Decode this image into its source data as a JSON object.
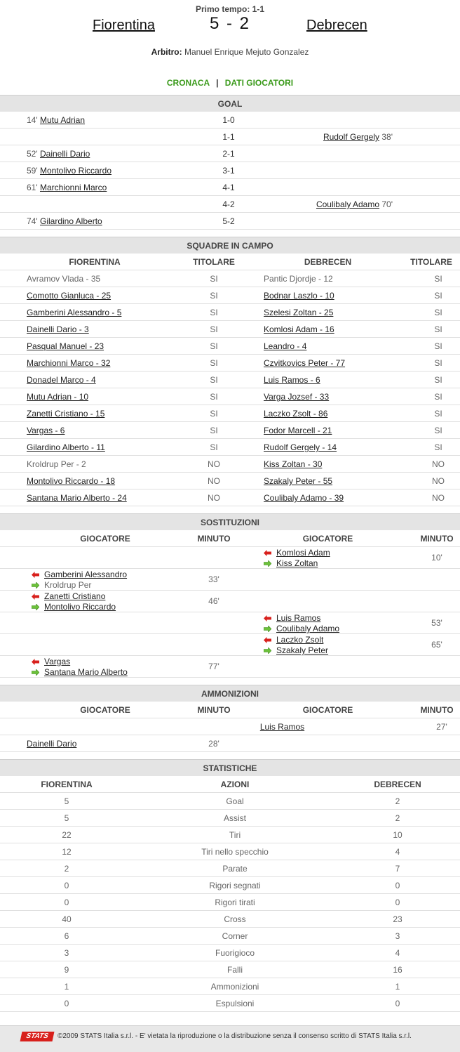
{
  "header": {
    "halftime": "Primo tempo: 1-1",
    "home": "Fiorentina",
    "away": "Debrecen",
    "score": "5 -  2",
    "referee_label": "Arbitro:",
    "referee": "Manuel Enrique Mejuto Gonzalez"
  },
  "tabs": {
    "cronaca": "CRONACA",
    "sep": "|",
    "dati": "DATI GIOCATORI"
  },
  "goals": {
    "title": "GOAL",
    "rows": [
      {
        "side": "home",
        "min": "14'",
        "player": "Mutu Adrian",
        "score": "1-0"
      },
      {
        "side": "away",
        "min": "38'",
        "player": "Rudolf Gergely",
        "score": "1-1"
      },
      {
        "side": "home",
        "min": "52'",
        "player": "Dainelli Dario",
        "score": "2-1"
      },
      {
        "side": "home",
        "min": "59'",
        "player": "Montolivo Riccardo",
        "score": "3-1"
      },
      {
        "side": "home",
        "min": "61'",
        "player": "Marchionni Marco",
        "score": "4-1"
      },
      {
        "side": "away",
        "min": "70'",
        "player": "Coulibaly Adamo",
        "score": "4-2"
      },
      {
        "side": "home",
        "min": "74'",
        "player": "Gilardino Alberto",
        "score": "5-2"
      }
    ]
  },
  "lineups": {
    "title": "SQUADRE IN CAMPO",
    "head": {
      "home": "FIORENTINA",
      "tit1": "TITOLARE",
      "away": "DEBRECEN",
      "tit2": "TITOLARE"
    },
    "rows": [
      {
        "home": "Avramov Vlada - 35",
        "hlink": false,
        "ht": "SI",
        "away": "Pantic Djordje - 12",
        "alink": false,
        "at": "SI"
      },
      {
        "home": "Comotto Gianluca - 25",
        "hlink": true,
        "ht": "SI",
        "away": "Bodnar Laszlo - 10",
        "alink": true,
        "at": "SI"
      },
      {
        "home": "Gamberini Alessandro - 5",
        "hlink": true,
        "ht": "SI",
        "away": "Szelesi Zoltan - 25",
        "alink": true,
        "at": "SI"
      },
      {
        "home": "Dainelli Dario - 3",
        "hlink": true,
        "ht": "SI",
        "away": "Komlosi Adam - 16",
        "alink": true,
        "at": "SI"
      },
      {
        "home": "Pasqual Manuel - 23",
        "hlink": true,
        "ht": "SI",
        "away": "Leandro - 4",
        "alink": true,
        "at": "SI"
      },
      {
        "home": "Marchionni Marco - 32",
        "hlink": true,
        "ht": "SI",
        "away": "Czvitkovics Peter - 77",
        "alink": true,
        "at": "SI"
      },
      {
        "home": "Donadel Marco - 4",
        "hlink": true,
        "ht": "SI",
        "away": "Luis Ramos - 6",
        "alink": true,
        "at": "SI"
      },
      {
        "home": "Mutu Adrian - 10",
        "hlink": true,
        "ht": "SI",
        "away": "Varga Jozsef - 33",
        "alink": true,
        "at": "SI"
      },
      {
        "home": "Zanetti Cristiano - 15",
        "hlink": true,
        "ht": "SI",
        "away": "Laczko Zsolt - 86",
        "alink": true,
        "at": "SI"
      },
      {
        "home": "Vargas - 6",
        "hlink": true,
        "ht": "SI",
        "away": "Fodor Marcell - 21",
        "alink": true,
        "at": "SI"
      },
      {
        "home": "Gilardino Alberto - 11",
        "hlink": true,
        "ht": "SI",
        "away": "Rudolf Gergely - 14",
        "alink": true,
        "at": "SI"
      },
      {
        "home": "Kroldrup Per - 2",
        "hlink": false,
        "ht": "NO",
        "away": "Kiss Zoltan - 30",
        "alink": true,
        "at": "NO"
      },
      {
        "home": "Montolivo Riccardo - 18",
        "hlink": true,
        "ht": "NO",
        "away": "Szakaly Peter - 55",
        "alink": true,
        "at": "NO"
      },
      {
        "home": "Santana Mario Alberto - 24",
        "hlink": true,
        "ht": "NO",
        "away": "Coulibaly Adamo - 39",
        "alink": true,
        "at": "NO"
      }
    ]
  },
  "subs": {
    "title": "SOSTITUZIONI",
    "head": {
      "g1": "GIOCATORE",
      "m1": "MINUTO",
      "g2": "GIOCATORE",
      "m2": "MINUTO"
    },
    "rows": [
      {
        "side": "away",
        "out": "Komlosi Adam",
        "outlink": true,
        "in": "Kiss Zoltan",
        "inlink": true,
        "min": "10'"
      },
      {
        "side": "home",
        "out": "Gamberini Alessandro",
        "outlink": true,
        "in": "Kroldrup Per",
        "inlink": false,
        "min": "33'"
      },
      {
        "side": "home",
        "out": "Zanetti Cristiano",
        "outlink": true,
        "in": "Montolivo Riccardo",
        "inlink": true,
        "min": "46'"
      },
      {
        "side": "away",
        "out": "Luis Ramos",
        "outlink": true,
        "in": "Coulibaly Adamo",
        "inlink": true,
        "min": "53'"
      },
      {
        "side": "away",
        "out": "Laczko Zsolt",
        "outlink": true,
        "in": "Szakaly Peter",
        "inlink": true,
        "min": "65'"
      },
      {
        "side": "home",
        "out": "Vargas",
        "outlink": true,
        "in": "Santana Mario Alberto",
        "inlink": true,
        "min": "77'"
      }
    ]
  },
  "bookings": {
    "title": "AMMONIZIONI",
    "head": {
      "g1": "GIOCATORE",
      "m1": "MINUTO",
      "g2": "GIOCATORE",
      "m2": "MINUTO"
    },
    "rows": [
      {
        "side": "away",
        "player": "Luis Ramos",
        "min": "27'"
      },
      {
        "side": "home",
        "player": "Dainelli Dario",
        "min": "28'"
      }
    ]
  },
  "stats": {
    "title": "STATISTICHE",
    "head": {
      "home": "FIORENTINA",
      "mid": "AZIONI",
      "away": "DEBRECEN"
    },
    "rows": [
      {
        "home": "5",
        "label": "Goal",
        "away": "2"
      },
      {
        "home": "5",
        "label": "Assist",
        "away": "2"
      },
      {
        "home": "22",
        "label": "Tiri",
        "away": "10"
      },
      {
        "home": "12",
        "label": "Tiri nello specchio",
        "away": "4"
      },
      {
        "home": "2",
        "label": "Parate",
        "away": "7"
      },
      {
        "home": "0",
        "label": "Rigori segnati",
        "away": "0"
      },
      {
        "home": "0",
        "label": "Rigori tirati",
        "away": "0"
      },
      {
        "home": "40",
        "label": "Cross",
        "away": "23"
      },
      {
        "home": "6",
        "label": "Corner",
        "away": "3"
      },
      {
        "home": "3",
        "label": "Fuorigioco",
        "away": "4"
      },
      {
        "home": "9",
        "label": "Falli",
        "away": "16"
      },
      {
        "home": "1",
        "label": "Ammonizioni",
        "away": "1"
      },
      {
        "home": "0",
        "label": "Espulsioni",
        "away": "0"
      }
    ]
  },
  "footer": {
    "logo": "STATS",
    "copyright": "©2009 STATS Italia s.r.l. - E' vietata la riproduzione o la distribuzione senza il consenso scritto di STATS Italia s.r.l."
  },
  "colors": {
    "accent": "#3a9a1a",
    "out_arrow": "#d8201c",
    "in_arrow": "#6cc13a",
    "section_bg": "#e4e4e4"
  }
}
